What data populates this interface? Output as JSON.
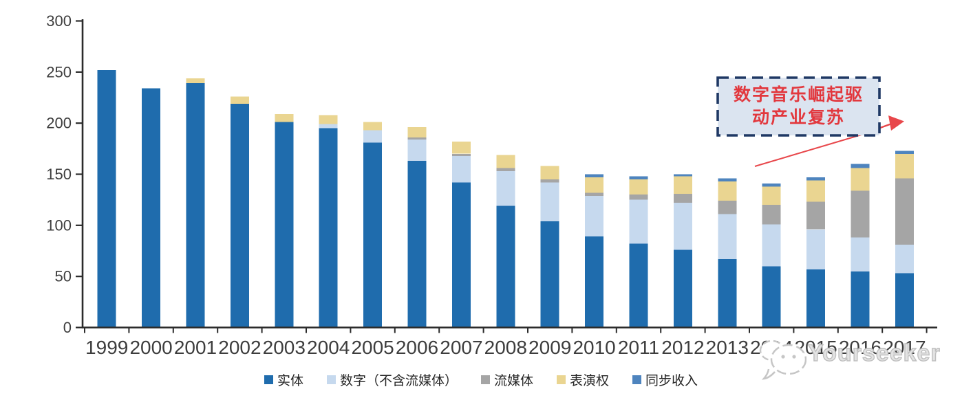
{
  "chart_data": {
    "type": "bar",
    "stacked": true,
    "title": "",
    "xlabel": "",
    "ylabel": "",
    "grid": false,
    "legend_position": "bottom",
    "ylim": [
      0,
      300
    ],
    "yticks": [
      0,
      50,
      100,
      150,
      200,
      250,
      300
    ],
    "categories": [
      "1999",
      "2000",
      "2001",
      "2002",
      "2003",
      "2004",
      "2005",
      "2006",
      "2007",
      "2008",
      "2009",
      "2010",
      "2011",
      "2012",
      "2013",
      "2014",
      "2015",
      "2016",
      "2017"
    ],
    "series": [
      {
        "name": "实体",
        "color": "#1F6CAD",
        "values": [
          252,
          234,
          239,
          219,
          201,
          195,
          181,
          163,
          142,
          119,
          104,
          89,
          82,
          76,
          67,
          60,
          57,
          55,
          53
        ]
      },
      {
        "name": "数字（不含流媒体）",
        "color": "#C6D9EE",
        "values": [
          0,
          0,
          0,
          0,
          0,
          4,
          12,
          21,
          26,
          34,
          38,
          40,
          43,
          46,
          44,
          41,
          39,
          33,
          28
        ]
      },
      {
        "name": "流媒体",
        "color": "#A5A5A5",
        "values": [
          0,
          0,
          0,
          0,
          0,
          0,
          0,
          2,
          2,
          3,
          3,
          3,
          5,
          9,
          13,
          19,
          27,
          46,
          65
        ]
      },
      {
        "name": "表演权",
        "color": "#EAD591",
        "values": [
          0,
          0,
          5,
          7,
          8,
          9,
          8,
          10,
          12,
          13,
          13,
          15,
          15,
          17,
          19,
          18,
          21,
          22,
          24
        ]
      },
      {
        "name": "同步收入",
        "color": "#4E84BE",
        "values": [
          0,
          0,
          0,
          0,
          0,
          0,
          0,
          0,
          0,
          0,
          0,
          3,
          3,
          2,
          3,
          3,
          3,
          4,
          3
        ]
      }
    ],
    "axis_color": "#2B2B2B",
    "tick_label_color": "#3D3D3D"
  },
  "annotation": {
    "line1": "数字音乐崛起驱",
    "line2": "动产业复苏",
    "box_fill": "#DBE4F0",
    "box_border_color": "#1F3864",
    "text_color": "#E2383E",
    "arrow_color": "#E8474B"
  },
  "watermark": {
    "text": "Yourseeker",
    "color": "#BFBFBF",
    "icon": "chat-bubbles-icon"
  }
}
